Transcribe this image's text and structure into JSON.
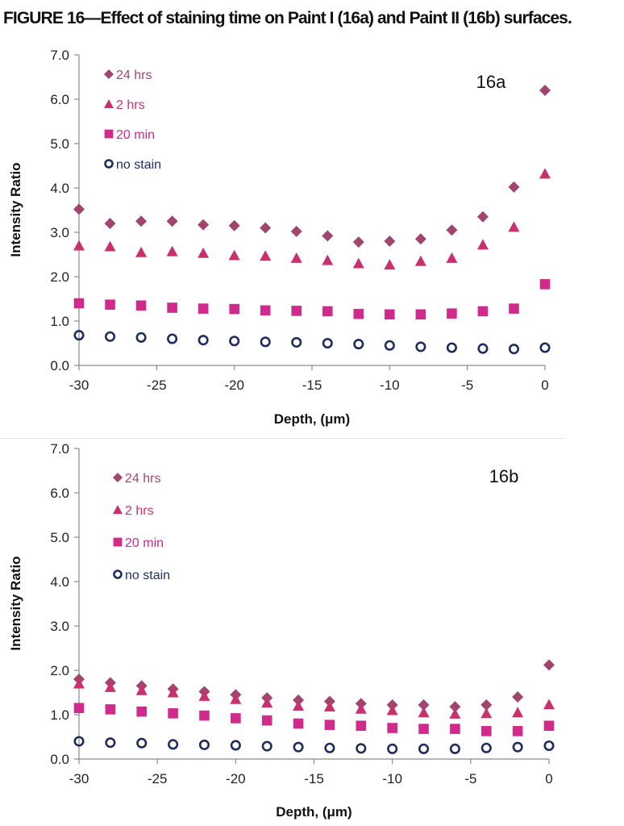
{
  "figure_title": "FIGURE 16—Effect of staining time on Paint I (16a) and Paint II (16b) surfaces.",
  "colors": {
    "24 hrs": "#a0466e",
    "2 hrs": "#c8316e",
    "20 min": "#d02a8c",
    "no stain": "#1e2c5e"
  },
  "chart_data": [
    {
      "type": "scatter",
      "panel_label": "16a",
      "xlabel": "Depth, (μm)",
      "ylabel": "Intensity Ratio",
      "xlim": [
        -30,
        0
      ],
      "ylim": [
        0,
        7
      ],
      "x_ticks": [
        "-30",
        "-25",
        "-20",
        "-15",
        "-10",
        "-5",
        "0"
      ],
      "y_ticks": [
        "0.0",
        "1.0",
        "2.0",
        "3.0",
        "4.0",
        "5.0",
        "6.0",
        "7.0"
      ],
      "grid": false,
      "legend_position": "top-left",
      "x": [
        -30,
        -28,
        -26,
        -24,
        -22,
        -20,
        -18,
        -16,
        -14,
        -12,
        -10,
        -8,
        -6,
        -4,
        -2,
        0
      ],
      "series": [
        {
          "name": "24 hrs",
          "marker": "diamond",
          "values": [
            3.52,
            3.2,
            3.25,
            3.25,
            3.17,
            3.15,
            3.1,
            3.02,
            2.92,
            2.78,
            2.8,
            2.85,
            3.05,
            3.35,
            4.02,
            6.2
          ]
        },
        {
          "name": "2 hrs",
          "marker": "triangle",
          "values": [
            2.7,
            2.68,
            2.55,
            2.57,
            2.53,
            2.48,
            2.47,
            2.42,
            2.37,
            2.3,
            2.27,
            2.35,
            2.42,
            2.72,
            3.12,
            4.32
          ]
        },
        {
          "name": "20 min",
          "marker": "square",
          "values": [
            1.4,
            1.37,
            1.35,
            1.3,
            1.28,
            1.27,
            1.24,
            1.23,
            1.22,
            1.16,
            1.15,
            1.15,
            1.17,
            1.22,
            1.28,
            1.83
          ]
        },
        {
          "name": "no stain",
          "marker": "circle",
          "values": [
            0.68,
            0.65,
            0.63,
            0.6,
            0.57,
            0.55,
            0.53,
            0.52,
            0.5,
            0.48,
            0.45,
            0.42,
            0.4,
            0.38,
            0.37,
            0.4
          ]
        }
      ]
    },
    {
      "type": "scatter",
      "panel_label": "16b",
      "xlabel": "Depth, (μm)",
      "ylabel": "Intensity Ratio",
      "xlim": [
        -30,
        0
      ],
      "ylim": [
        0,
        7
      ],
      "x_ticks": [
        "-30",
        "-25",
        "-20",
        "-15",
        "-10",
        "-5",
        "0"
      ],
      "y_ticks": [
        "0.0",
        "1.0",
        "2.0",
        "3.0",
        "4.0",
        "5.0",
        "6.0",
        "7.0"
      ],
      "grid": false,
      "legend_position": "top-left",
      "x": [
        -30,
        -28,
        -26,
        -24,
        -22,
        -20,
        -18,
        -16,
        -14,
        -12,
        -10,
        -8,
        -6,
        -4,
        -2,
        0
      ],
      "series": [
        {
          "name": "24 hrs",
          "marker": "diamond",
          "values": [
            1.8,
            1.72,
            1.65,
            1.58,
            1.52,
            1.45,
            1.38,
            1.33,
            1.3,
            1.25,
            1.22,
            1.22,
            1.18,
            1.22,
            1.4,
            2.12
          ]
        },
        {
          "name": "2 hrs",
          "marker": "triangle",
          "values": [
            1.7,
            1.62,
            1.55,
            1.5,
            1.42,
            1.35,
            1.27,
            1.2,
            1.18,
            1.13,
            1.1,
            1.05,
            1.02,
            1.03,
            1.05,
            1.23
          ]
        },
        {
          "name": "20 min",
          "marker": "square",
          "values": [
            1.15,
            1.12,
            1.07,
            1.03,
            0.98,
            0.92,
            0.87,
            0.8,
            0.77,
            0.75,
            0.7,
            0.68,
            0.68,
            0.63,
            0.63,
            0.75
          ]
        },
        {
          "name": "no stain",
          "marker": "circle",
          "values": [
            0.4,
            0.37,
            0.36,
            0.33,
            0.32,
            0.31,
            0.29,
            0.27,
            0.25,
            0.24,
            0.23,
            0.23,
            0.23,
            0.25,
            0.27,
            0.3
          ]
        }
      ]
    }
  ]
}
